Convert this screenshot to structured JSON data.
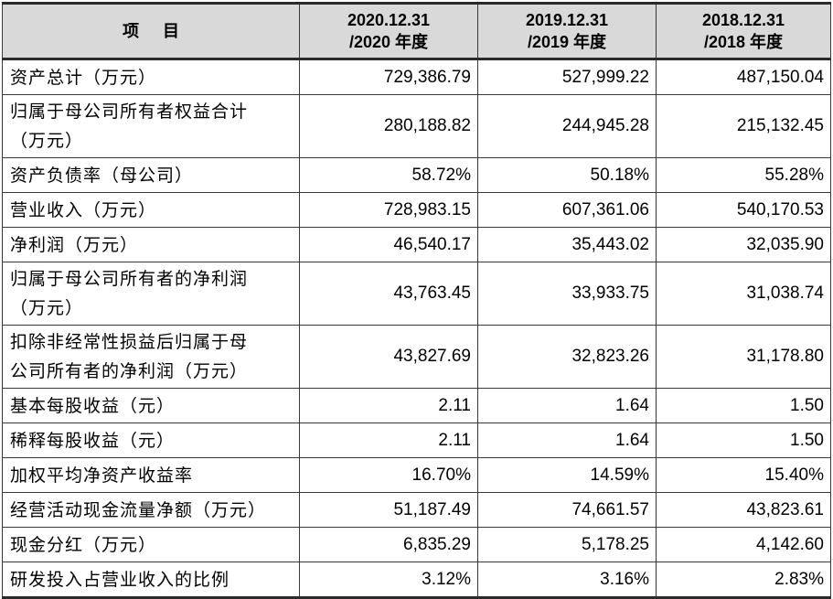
{
  "header": {
    "item": [
      "项",
      "目"
    ],
    "col2020": [
      "2020.12.31",
      "/2020 年度"
    ],
    "col2019": [
      "2019.12.31",
      "/2019 年度"
    ],
    "col2018": [
      "2018.12.31",
      "/2018 年度"
    ]
  },
  "rows": [
    {
      "label": "资产总计（万元）",
      "v2020": "729,386.79",
      "v2019": "527,999.22",
      "v2018": "487,150.04"
    },
    {
      "label": [
        "归属于母公司所有者权益合计",
        "（万元）"
      ],
      "v2020": "280,188.82",
      "v2019": "244,945.28",
      "v2018": "215,132.45"
    },
    {
      "label": "资产负债率（母公司）",
      "v2020": "58.72%",
      "v2019": "50.18%",
      "v2018": "55.28%"
    },
    {
      "label": "营业收入（万元）",
      "v2020": "728,983.15",
      "v2019": "607,361.06",
      "v2018": "540,170.53"
    },
    {
      "label": "净利润（万元）",
      "v2020": "46,540.17",
      "v2019": "35,443.02",
      "v2018": "32,035.90"
    },
    {
      "label": [
        "归属于母公司所有者的净利润",
        "（万元）"
      ],
      "v2020": "43,763.45",
      "v2019": "33,933.75",
      "v2018": "31,038.74"
    },
    {
      "label": [
        "扣除非经常性损益后归属于母",
        "公司所有者的净利润（万元）"
      ],
      "v2020": "43,827.69",
      "v2019": "32,823.26",
      "v2018": "31,178.80"
    },
    {
      "label": "基本每股收益（元）",
      "v2020": "2.11",
      "v2019": "1.64",
      "v2018": "1.50"
    },
    {
      "label": "稀释每股收益（元）",
      "v2020": "2.11",
      "v2019": "1.64",
      "v2018": "1.50"
    },
    {
      "label": "加权平均净资产收益率",
      "v2020": "16.70%",
      "v2019": "14.59%",
      "v2018": "15.40%"
    },
    {
      "label": "经营活动现金流量净额（万元）",
      "v2020": "51,187.49",
      "v2019": "74,661.57",
      "v2018": "43,823.61"
    },
    {
      "label": "现金分红（万元）",
      "v2020": "6,835.29",
      "v2019": "5,178.25",
      "v2018": "4,142.60"
    },
    {
      "label": "研发投入占营业收入的比例",
      "v2020": "3.12%",
      "v2019": "3.16%",
      "v2018": "2.83%"
    }
  ]
}
